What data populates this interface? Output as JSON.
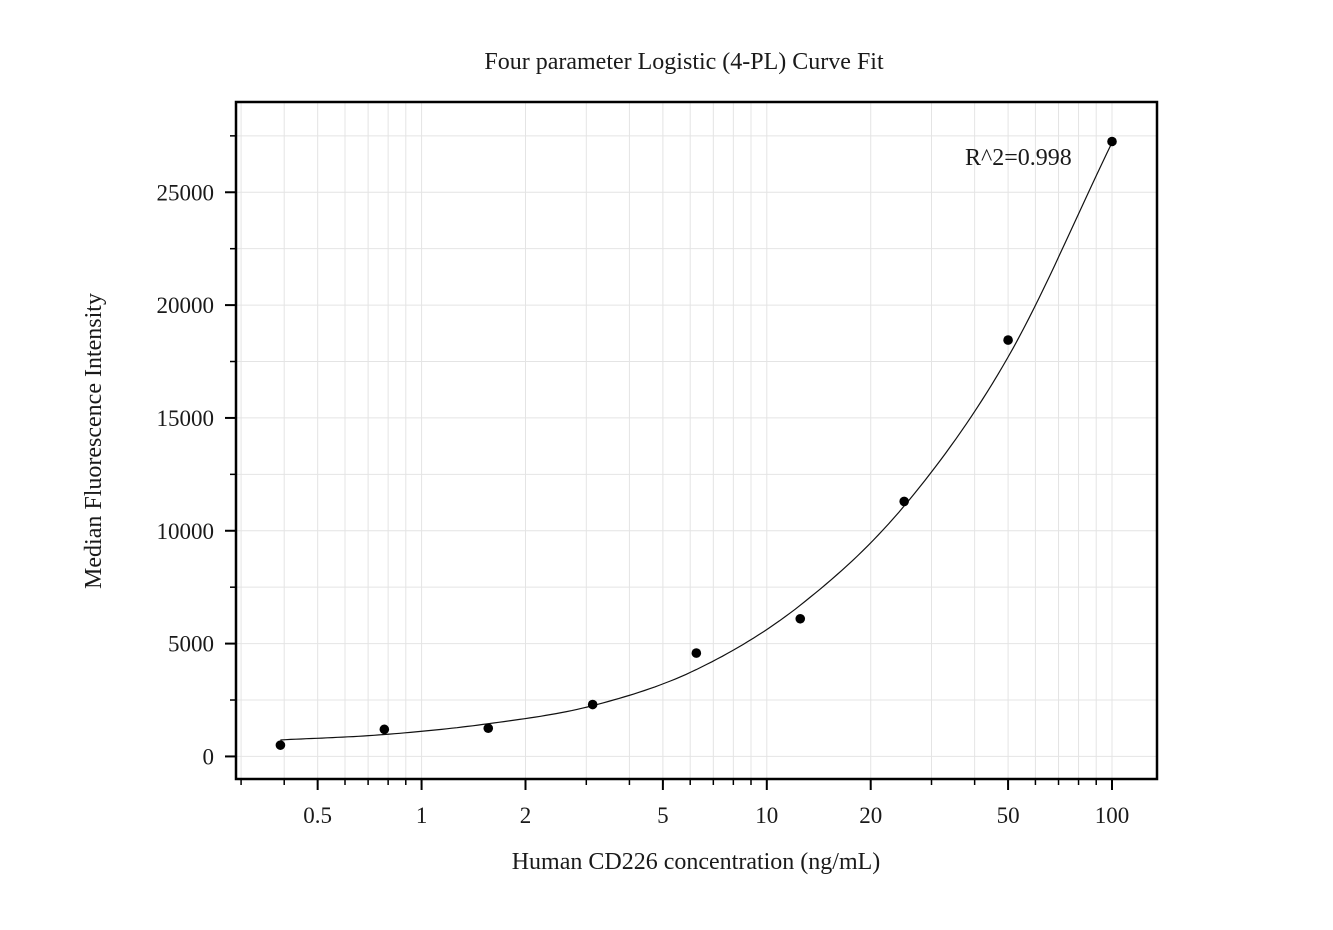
{
  "chart_data": {
    "type": "scatter",
    "title": "Four parameter Logistic (4-PL) Curve Fit",
    "xlabel": "Human CD226 concentration (ng/mL)",
    "ylabel": "Median Fluorescence Intensity",
    "x_scale": "log",
    "xlim": [
      0.29,
      135
    ],
    "ylim": [
      -1000,
      29000
    ],
    "x_ticks": [
      0.5,
      1,
      2,
      5,
      10,
      20,
      50,
      100
    ],
    "x_tick_labels": [
      "0.5",
      "1",
      "2",
      "5",
      "10",
      "20",
      "50",
      "100"
    ],
    "y_ticks": [
      0,
      5000,
      10000,
      15000,
      20000,
      25000
    ],
    "y_tick_labels": [
      "0",
      "5000",
      "10000",
      "15000",
      "20000",
      "25000"
    ],
    "grid": true,
    "series": [
      {
        "points": [
          {
            "x": 0.39,
            "y": 500
          },
          {
            "x": 0.78,
            "y": 1200
          },
          {
            "x": 1.56,
            "y": 1250
          },
          {
            "x": 3.13,
            "y": 2300
          },
          {
            "x": 6.25,
            "y": 4580
          },
          {
            "x": 12.5,
            "y": 6100
          },
          {
            "x": 25,
            "y": 11300
          },
          {
            "x": 50,
            "y": 18450
          },
          {
            "x": 100,
            "y": 27250
          }
        ]
      }
    ],
    "fit_curve": {
      "model": "4PL",
      "x": [
        0.39,
        0.78,
        1.56,
        3.13,
        6.25,
        12.5,
        25,
        50,
        100
      ],
      "y": [
        730,
        970,
        1450,
        2250,
        3850,
        6700,
        11100,
        17700,
        27200
      ]
    },
    "annotation": "R^2=0.998"
  }
}
